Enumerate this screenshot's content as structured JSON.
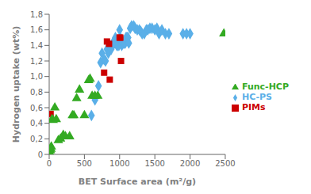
{
  "chart_data": {
    "type": "scatter",
    "xlabel": "BET Surface area (m²/g)",
    "ylabel": "Hydrogen uptake (wt%)",
    "xlim": [
      0,
      2500
    ],
    "ylim": [
      0,
      1.8
    ],
    "xticks": [
      0,
      500,
      1000,
      1500,
      2000,
      2500
    ],
    "yticks": [
      0,
      {
        "value": 0.2,
        "label": "0,2"
      },
      {
        "value": 0.4,
        "label": "0,4"
      },
      {
        "value": 0.6,
        "label": "0,6"
      },
      {
        "value": 0.8,
        "label": "0,8"
      },
      {
        "value": 1.0,
        "label": "1,0"
      },
      {
        "value": 1.2,
        "label": "1,2"
      },
      {
        "value": 1.4,
        "label": "1,4"
      },
      {
        "value": 1.6,
        "label": "1,6"
      },
      {
        "value": 1.8,
        "label": "1,8"
      }
    ],
    "grid": false,
    "legend": "right",
    "series": [
      {
        "name": "HC-PS",
        "color": "#5aafe8",
        "marker": "diamond",
        "x": [
          600,
          650,
          700,
          730,
          750,
          780,
          800,
          820,
          840,
          860,
          880,
          900,
          910,
          920,
          930,
          940,
          950,
          960,
          960,
          970,
          980,
          990,
          1000,
          1010,
          1020,
          1030,
          1040,
          1050,
          1060,
          1070,
          1080,
          1090,
          1100,
          1110,
          1120,
          1130,
          1150,
          1170,
          1200,
          1220,
          1250,
          1280,
          1300,
          1320,
          1350,
          1380,
          1400,
          1430,
          1460,
          1500,
          1530,
          1560,
          1600,
          1650,
          1700,
          1900,
          1950,
          2000
        ],
        "values": [
          0.5,
          0.7,
          0.88,
          1.18,
          1.3,
          1.22,
          1.2,
          1.35,
          1.3,
          1.4,
          1.35,
          1.43,
          1.43,
          1.43,
          1.43,
          1.5,
          1.43,
          1.43,
          1.4,
          1.4,
          1.43,
          1.4,
          1.6,
          1.5,
          1.43,
          1.4,
          1.43,
          1.43,
          1.43,
          1.43,
          1.43,
          1.5,
          1.5,
          1.5,
          1.5,
          1.43,
          1.62,
          1.65,
          1.65,
          1.62,
          1.6,
          1.6,
          1.58,
          1.55,
          1.55,
          1.6,
          1.6,
          1.62,
          1.62,
          1.6,
          1.62,
          1.55,
          1.6,
          1.55,
          1.55,
          1.55,
          1.55,
          1.55
        ]
      },
      {
        "name": "PIMs",
        "color": "#cc0000",
        "marker": "square",
        "x": [
          20,
          780,
          820,
          850,
          860,
          1000,
          1010,
          1020
        ],
        "values": [
          0.52,
          1.05,
          1.45,
          1.42,
          0.96,
          1.5,
          1.5,
          1.2
        ]
      },
      {
        "name": "Func-HCP",
        "color": "#33aa22",
        "marker": "triangle",
        "x": [
          5,
          10,
          15,
          25,
          30,
          40,
          55,
          80,
          100,
          130,
          160,
          200,
          230,
          290,
          330,
          350,
          390,
          430,
          500,
          560,
          580,
          610,
          650,
          690,
          2480
        ],
        "values": [
          0.0,
          0.02,
          0.05,
          0.07,
          0.1,
          0.45,
          0.44,
          0.6,
          0.45,
          0.18,
          0.2,
          0.25,
          0.23,
          0.23,
          0.5,
          0.5,
          0.72,
          0.83,
          0.5,
          0.95,
          0.97,
          0.75,
          0.75,
          0.75,
          1.55
        ]
      }
    ]
  }
}
